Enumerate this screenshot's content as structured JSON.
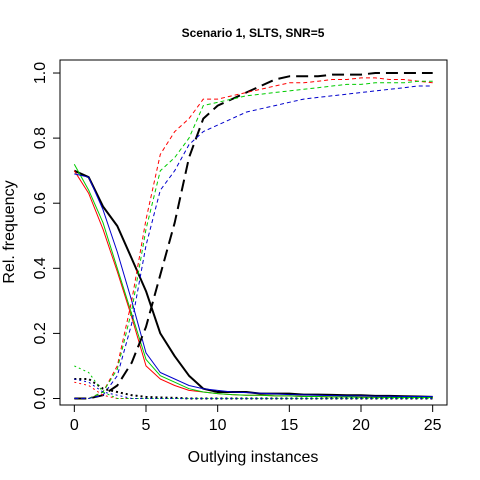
{
  "chart_data": {
    "type": "line",
    "title": "Scenario 1, SLTS, SNR=5",
    "xlabel": "Outlying instances",
    "ylabel": "Rel. frequency",
    "xlim": [
      -1,
      26
    ],
    "ylim": [
      -0.02,
      1.04
    ],
    "xticks": [
      0,
      5,
      10,
      15,
      20,
      25
    ],
    "yticks": [
      0.0,
      0.2,
      0.4,
      0.6,
      0.8,
      1.0
    ],
    "grid": false,
    "legend": "none",
    "x": [
      0,
      1,
      2,
      3,
      4,
      5,
      6,
      7,
      8,
      9,
      10,
      11,
      12,
      13,
      14,
      15,
      16,
      17,
      18,
      19,
      20,
      21,
      22,
      23,
      24,
      25
    ],
    "series": [
      {
        "color": "#000000",
        "style": "solid",
        "width": 2,
        "values": [
          0.7,
          0.68,
          0.59,
          0.53,
          0.43,
          0.33,
          0.2,
          0.13,
          0.07,
          0.03,
          0.02,
          0.02,
          0.02,
          0.015,
          0.015,
          0.015,
          0.012,
          0.012,
          0.011,
          0.01,
          0.01,
          0.008,
          0.008,
          0.007,
          0.006,
          0.005
        ]
      },
      {
        "color": "#ff0000",
        "style": "solid",
        "width": 1,
        "values": [
          0.7,
          0.63,
          0.52,
          0.39,
          0.25,
          0.1,
          0.06,
          0.04,
          0.025,
          0.02,
          0.015,
          0.012,
          0.01,
          0.01,
          0.008,
          0.008,
          0.006,
          0.006,
          0.005,
          0.005,
          0.004,
          0.004,
          0.003,
          0.003,
          0.003,
          0.003
        ]
      },
      {
        "color": "#00cc00",
        "style": "solid",
        "width": 1,
        "values": [
          0.72,
          0.64,
          0.54,
          0.4,
          0.26,
          0.12,
          0.07,
          0.05,
          0.03,
          0.02,
          0.015,
          0.012,
          0.01,
          0.01,
          0.008,
          0.008,
          0.006,
          0.006,
          0.005,
          0.005,
          0.004,
          0.004,
          0.003,
          0.003,
          0.003,
          0.003
        ]
      },
      {
        "color": "#0000cc",
        "style": "solid",
        "width": 1,
        "values": [
          0.69,
          0.68,
          0.58,
          0.45,
          0.3,
          0.14,
          0.08,
          0.06,
          0.04,
          0.03,
          0.025,
          0.02,
          0.018,
          0.016,
          0.014,
          0.012,
          0.011,
          0.01,
          0.009,
          0.008,
          0.008,
          0.007,
          0.007,
          0.006,
          0.006,
          0.006
        ]
      },
      {
        "color": "#000000",
        "style": "dashed-long",
        "width": 2,
        "values": [
          0.0,
          0.0,
          0.01,
          0.04,
          0.11,
          0.22,
          0.38,
          0.54,
          0.74,
          0.86,
          0.9,
          0.92,
          0.94,
          0.96,
          0.98,
          0.99,
          0.99,
          0.99,
          0.995,
          0.995,
          0.995,
          1.0,
          1.0,
          1.0,
          1.0,
          1.0
        ]
      },
      {
        "color": "#ff0000",
        "style": "dashed",
        "width": 1,
        "values": [
          0.0,
          0.0,
          0.02,
          0.1,
          0.3,
          0.55,
          0.75,
          0.82,
          0.86,
          0.92,
          0.92,
          0.93,
          0.94,
          0.95,
          0.96,
          0.97,
          0.97,
          0.975,
          0.98,
          0.98,
          0.985,
          0.985,
          0.98,
          0.98,
          0.975,
          0.97
        ]
      },
      {
        "color": "#00cc00",
        "style": "dashed",
        "width": 1,
        "values": [
          0.0,
          0.0,
          0.02,
          0.09,
          0.27,
          0.52,
          0.7,
          0.74,
          0.8,
          0.9,
          0.91,
          0.92,
          0.93,
          0.935,
          0.94,
          0.945,
          0.95,
          0.955,
          0.96,
          0.965,
          0.965,
          0.97,
          0.97,
          0.97,
          0.975,
          0.975
        ]
      },
      {
        "color": "#0000cc",
        "style": "dashed",
        "width": 1,
        "values": [
          0.0,
          0.0,
          0.01,
          0.07,
          0.23,
          0.47,
          0.64,
          0.7,
          0.78,
          0.82,
          0.84,
          0.86,
          0.88,
          0.89,
          0.9,
          0.91,
          0.92,
          0.925,
          0.93,
          0.935,
          0.94,
          0.945,
          0.95,
          0.955,
          0.96,
          0.96
        ]
      },
      {
        "color": "#000000",
        "style": "dotted",
        "width": 2,
        "values": [
          0.06,
          0.06,
          0.03,
          0.02,
          0.01,
          0.005,
          0.003,
          0.002,
          0.0,
          0.0,
          0.0,
          0.0,
          0.0,
          0.0,
          0.0,
          0.0,
          0.0,
          0.0,
          0.0,
          0.0,
          0.0,
          0.0,
          0.0,
          0.0,
          0.0,
          0.0
        ]
      },
      {
        "color": "#ff0000",
        "style": "dotted",
        "width": 1,
        "values": [
          0.05,
          0.04,
          0.01,
          0.0,
          0.0,
          0.0,
          0.0,
          0.0,
          0.0,
          0.0,
          0.0,
          0.0,
          0.0,
          0.0,
          0.0,
          0.0,
          0.0,
          0.0,
          0.0,
          0.0,
          0.0,
          0.0,
          0.0,
          0.0,
          0.0,
          0.0
        ]
      },
      {
        "color": "#00cc00",
        "style": "dotted",
        "width": 1,
        "values": [
          0.1,
          0.08,
          0.02,
          0.0,
          0.0,
          0.0,
          0.0,
          0.0,
          0.0,
          0.0,
          0.0,
          0.0,
          0.0,
          0.0,
          0.0,
          0.0,
          0.0,
          0.0,
          0.0,
          0.0,
          0.0,
          0.0,
          0.0,
          0.0,
          0.0,
          0.0
        ]
      },
      {
        "color": "#0000cc",
        "style": "dotted",
        "width": 1,
        "values": [
          0.06,
          0.05,
          0.02,
          0.01,
          0.0,
          0.0,
          0.0,
          0.0,
          0.0,
          0.0,
          0.0,
          0.0,
          0.0,
          0.0,
          0.0,
          0.0,
          0.0,
          0.0,
          0.0,
          0.0,
          0.0,
          0.0,
          0.0,
          0.0,
          0.0,
          0.0
        ]
      }
    ]
  }
}
